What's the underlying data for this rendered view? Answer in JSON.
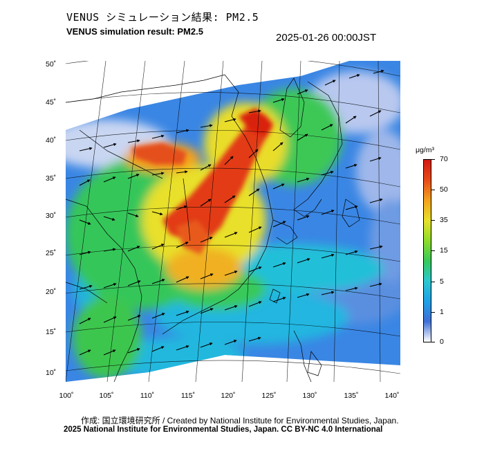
{
  "header": {
    "title_jp": "VENUS シミュレーション結果: PM2.5",
    "title_en": "VENUS simulation result: PM2.5",
    "timestamp": "2025-01-26 00:00JST"
  },
  "map": {
    "latitude_labels": [
      "50˚",
      "45˚",
      "40˚",
      "35˚",
      "30˚",
      "25˚",
      "20˚",
      "15˚",
      "10˚"
    ],
    "longitude_labels": [
      "100˚",
      "105˚",
      "110˚",
      "115˚",
      "120˚",
      "125˚",
      "130˚",
      "135˚",
      "140˚"
    ],
    "variable": "PM2.5"
  },
  "colorbar": {
    "unit": "μg/m³",
    "ticks": [
      "70",
      "50",
      "35",
      "15",
      "5",
      "1",
      "0"
    ],
    "colors": [
      "#ffffff",
      "#3f6fd6",
      "#1ea0e6",
      "#2bc8d0",
      "#39c95a",
      "#8fdc2a",
      "#e8e02a",
      "#f3a21f",
      "#e84a18",
      "#d11a14"
    ]
  },
  "footer": {
    "credit_line": "作成: 国立環境研究所 / Created by National Institute for Environmental Studies, Japan.",
    "license_line": "2025 National Institute for Environmental Studies, Japan. CC BY-NC 4.0 International"
  }
}
